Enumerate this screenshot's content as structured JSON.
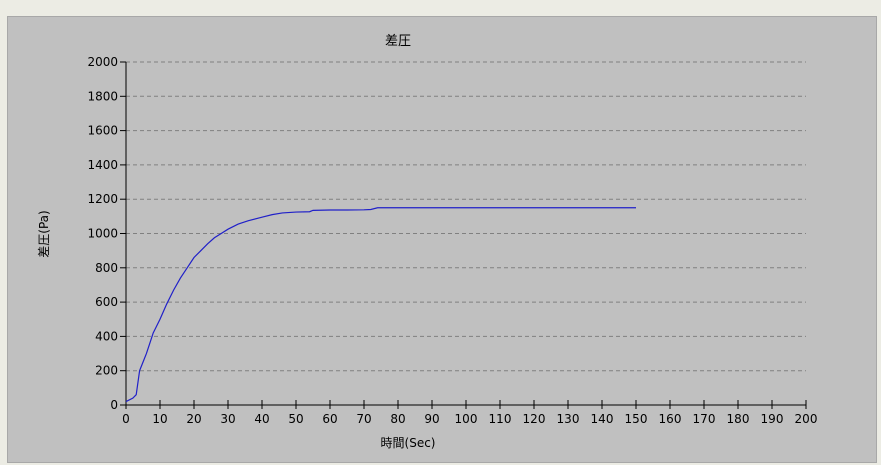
{
  "chart_data": {
    "type": "line",
    "title": "差圧",
    "xlabel": "時間(Sec)",
    "ylabel": "差圧(Pa)",
    "xlim": [
      0,
      200
    ],
    "ylim": [
      0,
      2000
    ],
    "x_ticks": [
      0,
      10,
      20,
      30,
      40,
      50,
      60,
      70,
      80,
      90,
      100,
      110,
      120,
      130,
      140,
      150,
      160,
      170,
      180,
      190,
      200
    ],
    "y_ticks": [
      0,
      200,
      400,
      600,
      800,
      1000,
      1200,
      1400,
      1600,
      1800,
      2000
    ],
    "grid": "horizontal dashed",
    "series": [
      {
        "color": "#2020c8",
        "points": [
          [
            0,
            20
          ],
          [
            2,
            40
          ],
          [
            3,
            60
          ],
          [
            4,
            200
          ],
          [
            5,
            250
          ],
          [
            6,
            300
          ],
          [
            7,
            360
          ],
          [
            8,
            420
          ],
          [
            9,
            460
          ],
          [
            10,
            500
          ],
          [
            12,
            590
          ],
          [
            14,
            670
          ],
          [
            16,
            740
          ],
          [
            18,
            800
          ],
          [
            20,
            860
          ],
          [
            22,
            900
          ],
          [
            24,
            940
          ],
          [
            26,
            975
          ],
          [
            28,
            1000
          ],
          [
            30,
            1025
          ],
          [
            33,
            1055
          ],
          [
            36,
            1075
          ],
          [
            40,
            1095
          ],
          [
            43,
            1110
          ],
          [
            46,
            1120
          ],
          [
            50,
            1125
          ],
          [
            54,
            1127
          ],
          [
            55,
            1135
          ],
          [
            60,
            1137
          ],
          [
            65,
            1137
          ],
          [
            70,
            1138
          ],
          [
            72,
            1140
          ],
          [
            74,
            1150
          ],
          [
            80,
            1150
          ],
          [
            100,
            1150
          ],
          [
            120,
            1150
          ],
          [
            140,
            1150
          ],
          [
            150,
            1150
          ]
        ]
      }
    ]
  }
}
